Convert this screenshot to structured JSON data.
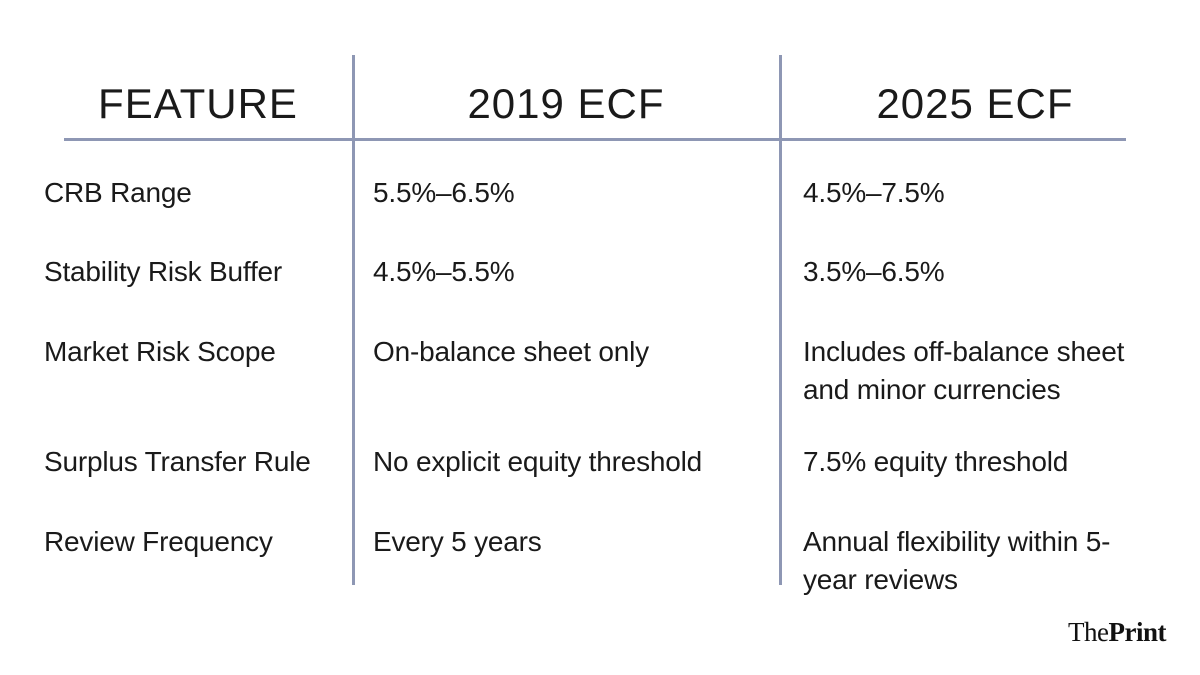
{
  "chart_data": {
    "type": "table",
    "columns": [
      "FEATURE",
      "2019 ECF",
      "2025 ECF"
    ],
    "rows": [
      [
        "CRB Range",
        "5.5%–6.5%",
        "4.5%–7.5%"
      ],
      [
        "Stability Risk Buffer",
        "4.5%–5.5%",
        "3.5%–6.5%"
      ],
      [
        "Market Risk Scope",
        "On-balance sheet only",
        "Includes off-balance sheet and minor currencies"
      ],
      [
        "Surplus Transfer Rule",
        "No explicit equity threshold",
        "7.5% equity threshold"
      ],
      [
        "Review Frequency",
        "Every 5 years",
        "Annual flexibility within 5-year reviews"
      ]
    ],
    "layout": "three-column comparison table, light vertical and horizontal slate-blue dividers, no outer border"
  },
  "branding": {
    "publisher_name_part1": "The",
    "publisher_name_part2": "Print"
  },
  "colors": {
    "divider": "#8e97b4",
    "text": "#1a1a1a",
    "background": "#ffffff",
    "logo": "#111111"
  }
}
